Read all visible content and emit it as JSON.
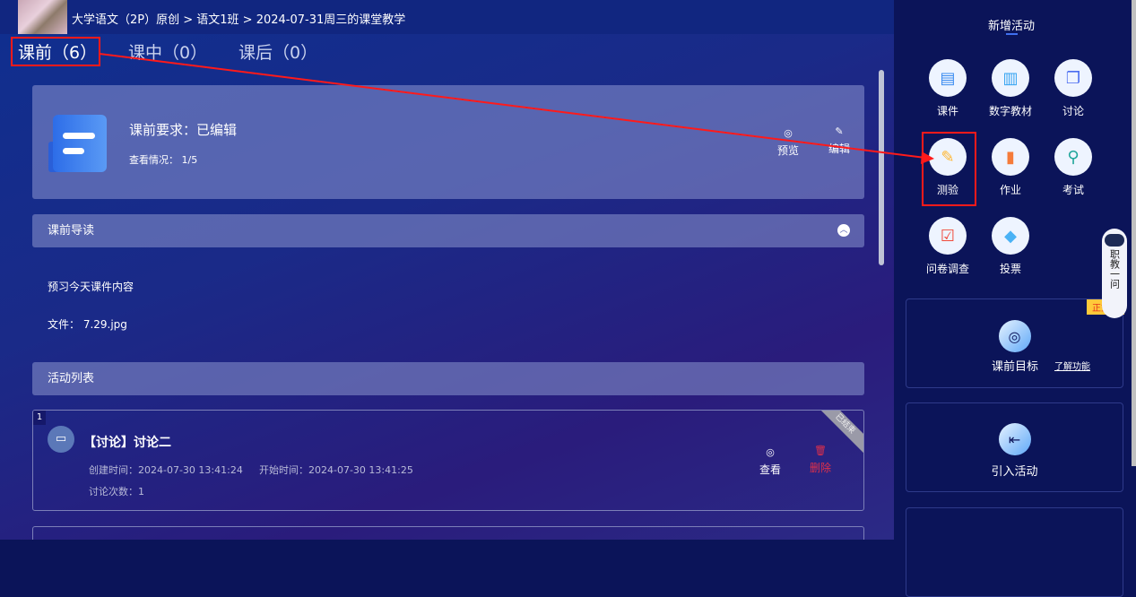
{
  "header": {
    "breadcrumb": "大学语文（2P）原创 > 语文1班 > 2024-07-31周三的课堂教学"
  },
  "tabs": [
    {
      "label": "课前（6）",
      "active": true
    },
    {
      "label": "课中（0）"
    },
    {
      "label": "课后（0）"
    }
  ],
  "requirement": {
    "title": "课前要求：已编辑",
    "view_status": "查看情况：  1/5",
    "preview": "预览",
    "edit": "编辑"
  },
  "guide": {
    "title": "课前导读",
    "text": "预习今天课件内容",
    "file": "文件：  7.29.jpg"
  },
  "activity_list": {
    "title": "活动列表",
    "items": [
      {
        "index": "1",
        "title": "【讨论】讨论二",
        "created": "创建时间：2024-07-30 13:41:24",
        "start": "开始时间：2024-07-30 13:41:25",
        "count": "讨论次数：1",
        "status": "已结束",
        "view": "查看",
        "delete": "删除"
      }
    ]
  },
  "panel": {
    "title": "新增活动",
    "items": [
      {
        "label": "课件",
        "icon": "courseware-icon",
        "color": "#3a8bf0"
      },
      {
        "label": "数字教材",
        "icon": "digital-textbook-icon",
        "color": "#36a4f2"
      },
      {
        "label": "讨论",
        "icon": "discussion-icon",
        "color": "#4a6cf0"
      },
      {
        "label": "测验",
        "icon": "quiz-icon",
        "color": "#ffb52e"
      },
      {
        "label": "作业",
        "icon": "homework-icon",
        "color": "#f57b3a"
      },
      {
        "label": "考试",
        "icon": "exam-icon",
        "color": "#1fa59a"
      },
      {
        "label": "问卷调查",
        "icon": "survey-icon",
        "color": "#f04a3a"
      },
      {
        "label": "投票",
        "icon": "vote-icon",
        "color": "#4ab2f5"
      }
    ],
    "goal": "课前目标",
    "learn_more": "了解功能",
    "badge": "正式版",
    "import": "引入活动"
  },
  "assistant": {
    "label": "职教一问"
  },
  "annotation_color": "#ff1a1a"
}
